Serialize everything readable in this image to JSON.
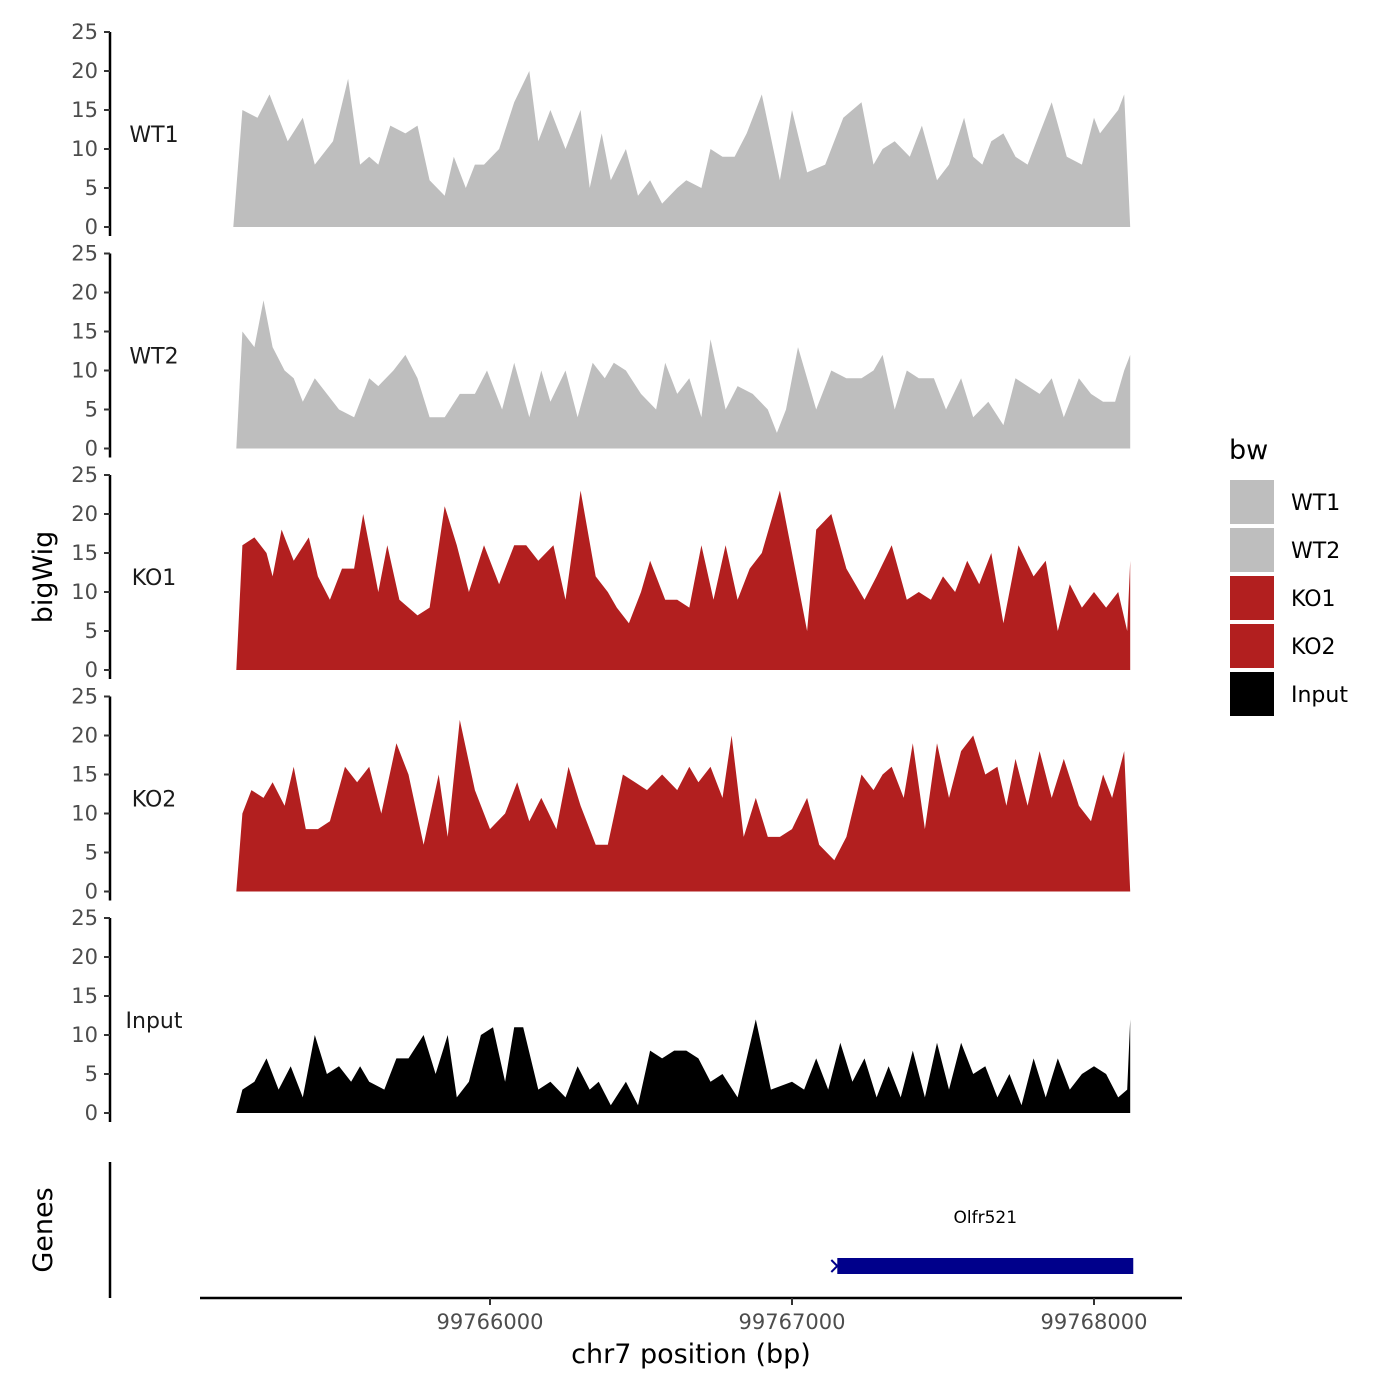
{
  "chart_data": {
    "type": "area",
    "ylabel": "bigWig",
    "xlabel": "chr7 position (bp)",
    "gene_panel_label": "Genes",
    "xlim": [
      99765000,
      99768280
    ],
    "ylim": [
      0,
      25
    ],
    "yticks": [
      0,
      5,
      10,
      15,
      20,
      25
    ],
    "xticks": [
      99766000,
      99767000,
      99768000
    ],
    "grid": false,
    "legend": {
      "title": "bw",
      "placement": "right",
      "entries": [
        {
          "label": "WT1",
          "color": "#bebebe"
        },
        {
          "label": "WT2",
          "color": "#bebebe"
        },
        {
          "label": "KO1",
          "color": "#b21f1f"
        },
        {
          "label": "KO2",
          "color": "#b21f1f"
        },
        {
          "label": "Input",
          "color": "#000000"
        }
      ]
    },
    "tracks": [
      {
        "name": "WT1",
        "color": "#bebebe",
        "x": [
          99765150,
          99765180,
          99765230,
          99765270,
          99765330,
          99765380,
          99765420,
          99765480,
          99765530,
          99765570,
          99765600,
          99765630,
          99765670,
          99765720,
          99765760,
          99765800,
          99765850,
          99765880,
          99765920,
          99765950,
          99765980,
          99766030,
          99766080,
          99766130,
          99766160,
          99766200,
          99766250,
          99766300,
          99766330,
          99766370,
          99766400,
          99766450,
          99766490,
          99766530,
          99766570,
          99766620,
          99766650,
          99766700,
          99766730,
          99766770,
          99766810,
          99766850,
          99766900,
          99766960,
          99767000,
          99767050,
          99767110,
          99767170,
          99767230,
          99767270,
          99767300,
          99767340,
          99767390,
          99767430,
          99767480,
          99767520,
          99767570,
          99767600,
          99767630,
          99767660,
          99767700,
          99767740,
          99767780,
          99767820,
          99767860,
          99767910,
          99767960,
          99768000,
          99768020,
          99768060,
          99768080,
          99768100,
          99768120
        ],
        "y": [
          0,
          15,
          14,
          17,
          11,
          14,
          8,
          11,
          19,
          8,
          9,
          8,
          13,
          12,
          13,
          6,
          4,
          9,
          5,
          8,
          8,
          10,
          16,
          20,
          11,
          15,
          10,
          15,
          5,
          12,
          6,
          10,
          4,
          6,
          3,
          5,
          6,
          5,
          10,
          9,
          9,
          12,
          17,
          6,
          15,
          7,
          8,
          14,
          16,
          8,
          10,
          11,
          9,
          13,
          6,
          8,
          14,
          9,
          8,
          11,
          12,
          9,
          8,
          12,
          16,
          9,
          8,
          14,
          12,
          14,
          15,
          17,
          0
        ]
      },
      {
        "name": "WT2",
        "color": "#bebebe",
        "x": [
          99765160,
          99765180,
          99765220,
          99765250,
          99765280,
          99765320,
          99765350,
          99765380,
          99765420,
          99765460,
          99765500,
          99765550,
          99765600,
          99765630,
          99765680,
          99765720,
          99765760,
          99765800,
          99765850,
          99765900,
          99765950,
          99765990,
          99766040,
          99766080,
          99766130,
          99766170,
          99766200,
          99766250,
          99766290,
          99766340,
          99766380,
          99766410,
          99766450,
          99766500,
          99766550,
          99766580,
          99766620,
          99766660,
          99766700,
          99766730,
          99766780,
          99766820,
          99766870,
          99766920,
          99766950,
          99766980,
          99767020,
          99767080,
          99767130,
          99767180,
          99767230,
          99767270,
          99767300,
          99767340,
          99767380,
          99767420,
          99767470,
          99767510,
          99767560,
          99767600,
          99767650,
          99767700,
          99767740,
          99767780,
          99767820,
          99767860,
          99767900,
          99767950,
          99767990,
          99768030,
          99768070,
          99768100,
          99768120
        ],
        "y": [
          0,
          15,
          13,
          19,
          13,
          10,
          9,
          6,
          9,
          7,
          5,
          4,
          9,
          8,
          10,
          12,
          9,
          4,
          4,
          7,
          7,
          10,
          5,
          11,
          4,
          10,
          6,
          10,
          4,
          11,
          9,
          11,
          10,
          7,
          5,
          11,
          7,
          9,
          4,
          14,
          5,
          8,
          7,
          5,
          2,
          5,
          13,
          5,
          10,
          9,
          9,
          10,
          12,
          5,
          10,
          9,
          9,
          5,
          9,
          4,
          6,
          3,
          9,
          8,
          7,
          9,
          4,
          9,
          7,
          6,
          6,
          10,
          12
        ]
      },
      {
        "name": "KO1",
        "color": "#b21f1f",
        "x": [
          99765160,
          99765180,
          99765220,
          99765260,
          99765280,
          99765310,
          99765350,
          99765400,
          99765430,
          99765470,
          99765510,
          99765550,
          99765580,
          99765630,
          99765660,
          99765700,
          99765760,
          99765800,
          99765850,
          99765890,
          99765930,
          99765980,
          99766030,
          99766080,
          99766120,
          99766160,
          99766210,
          99766250,
          99766300,
          99766350,
          99766390,
          99766420,
          99766460,
          99766500,
          99766530,
          99766580,
          99766620,
          99766660,
          99766700,
          99766740,
          99766780,
          99766820,
          99766860,
          99766900,
          99766960,
          99766990,
          99767050,
          99767080,
          99767130,
          99767180,
          99767240,
          99767280,
          99767330,
          99767380,
          99767420,
          99767460,
          99767500,
          99767540,
          99767580,
          99767620,
          99767660,
          99767700,
          99767750,
          99767800,
          99767840,
          99767880,
          99767920,
          99767960,
          99768000,
          99768040,
          99768080,
          99768110,
          99768120
        ],
        "y": [
          0,
          16,
          17,
          15,
          12,
          18,
          14,
          17,
          12,
          9,
          13,
          13,
          20,
          10,
          16,
          9,
          7,
          8,
          21,
          16,
          10,
          16,
          11,
          16,
          16,
          14,
          16,
          9,
          23,
          12,
          10,
          8,
          6,
          10,
          14,
          9,
          9,
          8,
          16,
          9,
          16,
          9,
          13,
          15,
          23,
          17,
          5,
          18,
          20,
          13,
          9,
          12,
          16,
          9,
          10,
          9,
          12,
          10,
          14,
          11,
          15,
          6,
          16,
          12,
          14,
          5,
          11,
          8,
          10,
          8,
          10,
          5,
          14
        ]
      },
      {
        "name": "KO2",
        "color": "#b21f1f",
        "x": [
          99765160,
          99765180,
          99765210,
          99765250,
          99765280,
          99765320,
          99765350,
          99765390,
          99765430,
          99765470,
          99765520,
          99765560,
          99765600,
          99765640,
          99765690,
          99765730,
          99765780,
          99765830,
          99765860,
          99765900,
          99765950,
          99766000,
          99766050,
          99766090,
          99766130,
          99766170,
          99766220,
          99766260,
          99766300,
          99766350,
          99766390,
          99766440,
          99766480,
          99766520,
          99766570,
          99766620,
          99766660,
          99766690,
          99766730,
          99766770,
          99766800,
          99766840,
          99766880,
          99766920,
          99766960,
          99767000,
          99767050,
          99767090,
          99767140,
          99767180,
          99767230,
          99767270,
          99767300,
          99767330,
          99767370,
          99767400,
          99767440,
          99767480,
          99767520,
          99767560,
          99767600,
          99767640,
          99767680,
          99767710,
          99767740,
          99767780,
          99767820,
          99767860,
          99767900,
          99767950,
          99767990,
          99768030,
          99768060,
          99768100,
          99768120
        ],
        "y": [
          0,
          10,
          13,
          12,
          14,
          11,
          16,
          8,
          8,
          9,
          16,
          14,
          16,
          10,
          19,
          15,
          6,
          15,
          7,
          22,
          13,
          8,
          10,
          14,
          9,
          12,
          8,
          16,
          11,
          6,
          6,
          15,
          14,
          13,
          15,
          13,
          16,
          14,
          16,
          12,
          20,
          7,
          12,
          7,
          7,
          8,
          12,
          6,
          4,
          7,
          15,
          13,
          15,
          16,
          12,
          19,
          8,
          19,
          12,
          18,
          20,
          15,
          16,
          11,
          17,
          11,
          18,
          12,
          17,
          11,
          9,
          15,
          12,
          18,
          0
        ]
      },
      {
        "name": "Input",
        "color": "#000000",
        "x": [
          99765160,
          99765180,
          99765220,
          99765260,
          99765300,
          99765340,
          99765380,
          99765420,
          99765460,
          99765500,
          99765540,
          99765570,
          99765600,
          99765650,
          99765690,
          99765730,
          99765780,
          99765820,
          99765860,
          99765890,
          99765930,
          99765970,
          99766010,
          99766050,
          99766080,
          99766110,
          99766160,
          99766200,
          99766250,
          99766290,
          99766330,
          99766360,
          99766400,
          99766450,
          99766490,
          99766530,
          99766570,
          99766610,
          99766650,
          99766690,
          99766730,
          99766770,
          99766820,
          99766880,
          99766930,
          99767000,
          99767040,
          99767080,
          99767120,
          99767160,
          99767200,
          99767240,
          99767280,
          99767320,
          99767360,
          99767400,
          99767440,
          99767480,
          99767520,
          99767560,
          99767600,
          99767640,
          99767680,
          99767720,
          99767760,
          99767800,
          99767840,
          99767880,
          99767920,
          99767960,
          99768000,
          99768040,
          99768080,
          99768110,
          99768120
        ],
        "y": [
          0,
          3,
          4,
          7,
          3,
          6,
          2,
          10,
          5,
          6,
          4,
          6,
          4,
          3,
          7,
          7,
          10,
          5,
          10,
          2,
          4,
          10,
          11,
          4,
          11,
          11,
          3,
          4,
          2,
          6,
          3,
          4,
          1,
          4,
          1,
          8,
          7,
          8,
          8,
          7,
          4,
          5,
          2,
          12,
          3,
          4,
          3,
          7,
          3,
          9,
          4,
          7,
          2,
          6,
          2,
          8,
          2,
          9,
          3,
          9,
          5,
          6,
          2,
          5,
          1,
          7,
          2,
          7,
          3,
          5,
          6,
          5,
          2,
          3,
          12
        ]
      }
    ],
    "gene": {
      "name": "Olfr521",
      "start": 99767150,
      "end": 99768130,
      "strand": "-",
      "color": "#00008b"
    }
  }
}
